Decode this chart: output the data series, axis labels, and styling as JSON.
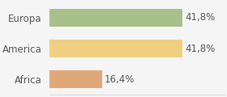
{
  "categories": [
    "Europa",
    "America",
    "Africa"
  ],
  "values": [
    41.8,
    41.8,
    16.4
  ],
  "labels": [
    "41,8%",
    "41,8%",
    "16,4%"
  ],
  "bar_colors": [
    "#a8c08a",
    "#f0d080",
    "#e0a878"
  ],
  "background_color": "#f5f5f5",
  "xlim": [
    0,
    55
  ],
  "bar_height": 0.58,
  "label_fontsize": 8.5,
  "category_fontsize": 8.5
}
